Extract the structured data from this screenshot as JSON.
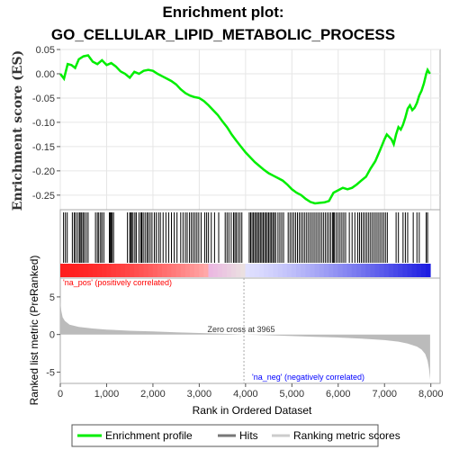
{
  "title_line1": "Enrichment plot:",
  "title_line2": "GO_CELLULAR_LIPID_METABOLIC_PROCESS",
  "colors": {
    "enrichment": "#00ee00",
    "hits": "#000000",
    "ranking": "#bbbbbb",
    "pos_label": "#ff0000",
    "neg_label": "#0000ff",
    "grid": "#e6e6e6",
    "zero_line": "#aaaaaa"
  },
  "chart_data": [
    {
      "type": "line",
      "name": "enrichment-profile",
      "ylabel": "Enrichment score (ES)",
      "ylim": [
        -0.28,
        0.05
      ],
      "yticks": [
        0.05,
        0.0,
        -0.05,
        -0.1,
        -0.15,
        -0.2,
        -0.25
      ],
      "ytick_labels": [
        "0.05",
        "0.00",
        "-0.05",
        "-0.10",
        "-0.15",
        "-0.20",
        "-0.25"
      ],
      "xlim": [
        0,
        8200
      ],
      "grid": true,
      "points": [
        [
          0,
          0.0
        ],
        [
          80,
          -0.01
        ],
        [
          160,
          0.02
        ],
        [
          240,
          0.018
        ],
        [
          320,
          0.012
        ],
        [
          400,
          0.03
        ],
        [
          500,
          0.036
        ],
        [
          600,
          0.038
        ],
        [
          700,
          0.025
        ],
        [
          800,
          0.02
        ],
        [
          900,
          0.028
        ],
        [
          1000,
          0.018
        ],
        [
          1100,
          0.022
        ],
        [
          1200,
          0.015
        ],
        [
          1300,
          0.005
        ],
        [
          1400,
          0.0
        ],
        [
          1500,
          -0.008
        ],
        [
          1600,
          0.004
        ],
        [
          1700,
          0.0
        ],
        [
          1800,
          0.006
        ],
        [
          1900,
          0.008
        ],
        [
          2000,
          0.006
        ],
        [
          2100,
          0.0
        ],
        [
          2200,
          -0.005
        ],
        [
          2300,
          -0.01
        ],
        [
          2400,
          -0.015
        ],
        [
          2500,
          -0.022
        ],
        [
          2600,
          -0.032
        ],
        [
          2700,
          -0.04
        ],
        [
          2800,
          -0.045
        ],
        [
          2900,
          -0.048
        ],
        [
          3000,
          -0.05
        ],
        [
          3100,
          -0.056
        ],
        [
          3200,
          -0.065
        ],
        [
          3300,
          -0.075
        ],
        [
          3400,
          -0.085
        ],
        [
          3500,
          -0.098
        ],
        [
          3600,
          -0.11
        ],
        [
          3700,
          -0.125
        ],
        [
          3800,
          -0.138
        ],
        [
          3900,
          -0.15
        ],
        [
          4000,
          -0.162
        ],
        [
          4100,
          -0.172
        ],
        [
          4200,
          -0.182
        ],
        [
          4300,
          -0.19
        ],
        [
          4400,
          -0.198
        ],
        [
          4500,
          -0.205
        ],
        [
          4600,
          -0.21
        ],
        [
          4700,
          -0.215
        ],
        [
          4800,
          -0.22
        ],
        [
          4900,
          -0.228
        ],
        [
          5000,
          -0.238
        ],
        [
          5100,
          -0.245
        ],
        [
          5200,
          -0.25
        ],
        [
          5300,
          -0.258
        ],
        [
          5400,
          -0.264
        ],
        [
          5500,
          -0.267
        ],
        [
          5600,
          -0.266
        ],
        [
          5700,
          -0.265
        ],
        [
          5800,
          -0.262
        ],
        [
          5900,
          -0.245
        ],
        [
          6000,
          -0.24
        ],
        [
          6100,
          -0.235
        ],
        [
          6200,
          -0.238
        ],
        [
          6300,
          -0.235
        ],
        [
          6400,
          -0.228
        ],
        [
          6500,
          -0.22
        ],
        [
          6600,
          -0.212
        ],
        [
          6700,
          -0.195
        ],
        [
          6800,
          -0.18
        ],
        [
          6900,
          -0.158
        ],
        [
          7000,
          -0.135
        ],
        [
          7050,
          -0.125
        ],
        [
          7150,
          -0.135
        ],
        [
          7200,
          -0.145
        ],
        [
          7250,
          -0.125
        ],
        [
          7300,
          -0.11
        ],
        [
          7350,
          -0.115
        ],
        [
          7400,
          -0.105
        ],
        [
          7450,
          -0.09
        ],
        [
          7500,
          -0.072
        ],
        [
          7550,
          -0.065
        ],
        [
          7600,
          -0.075
        ],
        [
          7650,
          -0.07
        ],
        [
          7700,
          -0.06
        ],
        [
          7750,
          -0.045
        ],
        [
          7800,
          -0.035
        ],
        [
          7850,
          -0.02
        ],
        [
          7900,
          0.0
        ],
        [
          7930,
          0.008
        ],
        [
          7980,
          0.0
        ]
      ]
    },
    {
      "type": "bar",
      "name": "ranked-list-metric",
      "ylabel": "Ranked list metric (PreRanked)",
      "xlabel": "Rank in Ordered Dataset",
      "xlim": [
        0,
        8200
      ],
      "xticks": [
        0,
        1000,
        2000,
        3000,
        4000,
        5000,
        6000,
        7000,
        8000
      ],
      "xtick_labels": [
        "0",
        "1,000",
        "2,000",
        "3,000",
        "4,000",
        "5,000",
        "6,000",
        "7,000",
        "8,000"
      ],
      "ylim": [
        -6.5,
        7.5
      ],
      "yticks": [
        5,
        0,
        -5
      ],
      "ytick_labels": [
        "5",
        "0",
        "-5"
      ],
      "points": [
        [
          0,
          4.5
        ],
        [
          20,
          3.2
        ],
        [
          50,
          2.3
        ],
        [
          100,
          1.8
        ],
        [
          200,
          1.3
        ],
        [
          400,
          1.0
        ],
        [
          700,
          0.8
        ],
        [
          1000,
          0.65
        ],
        [
          1500,
          0.5
        ],
        [
          2000,
          0.4
        ],
        [
          2500,
          0.3
        ],
        [
          3000,
          0.2
        ],
        [
          3500,
          0.1
        ],
        [
          3965,
          0.0
        ],
        [
          4500,
          -0.1
        ],
        [
          5000,
          -0.2
        ],
        [
          5500,
          -0.3
        ],
        [
          6000,
          -0.4
        ],
        [
          6500,
          -0.55
        ],
        [
          7000,
          -0.75
        ],
        [
          7300,
          -0.95
        ],
        [
          7500,
          -1.2
        ],
        [
          7700,
          -1.6
        ],
        [
          7800,
          -2.0
        ],
        [
          7880,
          -2.6
        ],
        [
          7930,
          -3.5
        ],
        [
          7960,
          -4.5
        ],
        [
          7985,
          -6.0
        ]
      ],
      "zero_cross_label": "Zero cross at 3965",
      "zero_cross": 3965,
      "pos_label": "'na_pos' (positively correlated)",
      "neg_label": "'na_neg' (negatively correlated)"
    }
  ],
  "hits": [
    70,
    110,
    150,
    260,
    300,
    330,
    370,
    410,
    430,
    460,
    490,
    520,
    560,
    600,
    760,
    800,
    830,
    870,
    900,
    940,
    1060,
    1080,
    1100,
    1120,
    1150,
    1450,
    1500,
    1520,
    1540,
    1570,
    1610,
    1640,
    1700,
    1740,
    1760,
    1790,
    1830,
    1870,
    1900,
    1940,
    1980,
    2030,
    2070,
    2120,
    2160,
    2220,
    2280,
    2340,
    2400,
    2460,
    2520,
    2600,
    2650,
    2700,
    2740,
    2790,
    2830,
    2870,
    2910,
    2950,
    2990,
    3040,
    3120,
    3160,
    3200,
    3260,
    3330,
    3420,
    3560,
    3600,
    3640,
    3690,
    3740,
    3770,
    3800,
    3840,
    3880,
    3920,
    4080,
    4110,
    4140,
    4170,
    4200,
    4230,
    4260,
    4290,
    4320,
    4350,
    4380,
    4410,
    4440,
    4470,
    4500,
    4530,
    4560,
    4590,
    4620,
    4650,
    4700,
    4740,
    4780,
    4820,
    4920,
    4960,
    5000,
    5040,
    5080,
    5120,
    5160,
    5200,
    5240,
    5280,
    5320,
    5360,
    5400,
    5440,
    5480,
    5520,
    5560,
    5600,
    5640,
    5680,
    5720,
    5760,
    5800,
    5840,
    5880,
    5900,
    5920,
    5960,
    6000,
    6040,
    6080,
    6120,
    6160,
    6240,
    6300,
    6360,
    6420,
    6460,
    6500,
    6540,
    6580,
    6620,
    6660,
    6700,
    6740,
    6780,
    6820,
    6860,
    6900,
    6940,
    6980,
    7020,
    7060,
    7250,
    7300,
    7400,
    7450,
    7500,
    7620,
    7700,
    7750,
    7900,
    7930
  ],
  "legend": {
    "items": [
      {
        "label": "Enrichment profile",
        "icon": "green-line",
        "color": "#00ee00"
      },
      {
        "label": "Hits",
        "icon": "gray-line",
        "color": "#777777"
      },
      {
        "label": "Ranking metric scores",
        "icon": "light-gray-line",
        "color": "#cccccc"
      }
    ]
  }
}
